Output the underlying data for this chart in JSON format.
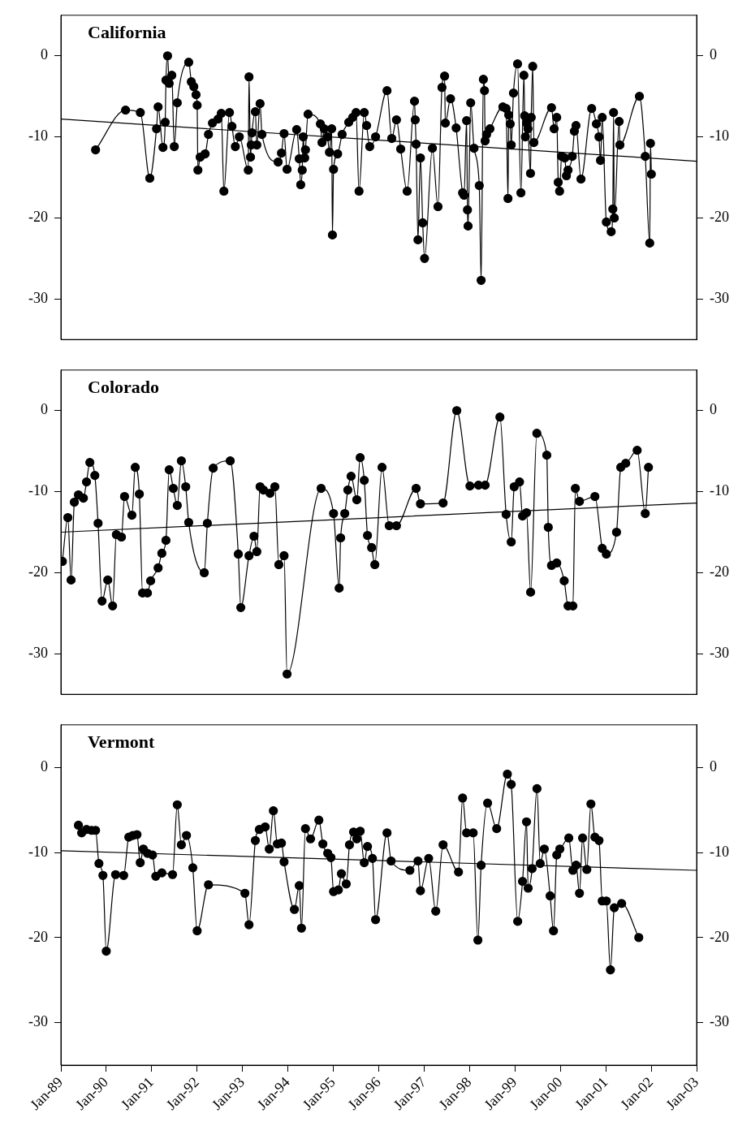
{
  "chart_data": [
    {
      "type": "line",
      "title": "California",
      "marker": "circle",
      "tick_labels": "y",
      "xlim": [
        "1989-01",
        "2003-01"
      ],
      "ylim": [
        -35,
        5
      ],
      "yticks": [
        -30,
        -20,
        -10,
        0
      ],
      "y2lim": [
        -35,
        5
      ],
      "y2ticks": [
        -30,
        -20,
        -10,
        0
      ],
      "series": [
        {
          "color": "#000000",
          "x": [
            "1989-10-07",
            "1990-06-05",
            "1990-10-02",
            "1990-12-17",
            "1991-02-09",
            "1991-02-22",
            "1991-04-02",
            "1991-04-20",
            "1991-04-26",
            "1991-05-09",
            "1991-05-22",
            "1991-06-12",
            "1991-07-02",
            "1991-07-26",
            "1991-10-26",
            "1991-11-16",
            "1991-12-06",
            "1991-12-24",
            "1992-01-02",
            "1992-01-08",
            "1992-01-26",
            "1992-03-06",
            "1992-04-02",
            "1992-05-04",
            "1992-06-18",
            "1992-07-14",
            "1992-08-04",
            "1992-09-18",
            "1992-10-08",
            "1992-11-04",
            "1992-12-06",
            "1993-02-16",
            "1993-02-22",
            "1993-03-06",
            "1993-03-12",
            "1993-03-18",
            "1993-04-14",
            "1993-04-26",
            "1993-05-22",
            "1993-06-06",
            "1993-10-14",
            "1993-11-10",
            "1993-12-01",
            "1993-12-25",
            "1994-03-12",
            "1994-04-02",
            "1994-04-14",
            "1994-04-26",
            "1994-05-04",
            "1994-05-16",
            "1994-05-22",
            "1994-06-12",
            "1994-09-19",
            "1994-10-02",
            "1994-10-20",
            "1994-11-16",
            "1994-12-01",
            "1994-12-19",
            "1994-12-25",
            "1995-01-03",
            "1995-02-05",
            "1995-03-13",
            "1995-05-05",
            "1995-06-06",
            "1995-07-03",
            "1995-07-27",
            "1995-09-07",
            "1995-09-26",
            "1995-10-21",
            "1995-12-07",
            "1996-03-08",
            "1996-04-15",
            "1996-05-23",
            "1996-06-26",
            "1996-08-17",
            "1996-10-15",
            "1996-10-21",
            "1996-10-28",
            "1996-11-12",
            "1996-12-02",
            "1996-12-20",
            "1997-01-04",
            "1997-03-08",
            "1997-04-22",
            "1997-05-24",
            "1997-06-14",
            "1997-06-20",
            "1997-08-01",
            "1997-09-15",
            "1997-11-06",
            "1997-11-18",
            "1997-12-08",
            "1997-12-15",
            "1997-12-20",
            "1998-01-10",
            "1998-02-06",
            "1998-03-20",
            "1998-04-04",
            "1998-04-22",
            "1998-05-01",
            "1998-05-06",
            "1998-05-18",
            "1998-06-14",
            "1998-09-26",
            "1998-10-22",
            "1998-11-06",
            "1998-11-12",
            "1998-11-24",
            "1998-12-02",
            "1998-12-20",
            "1999-01-22",
            "1999-02-18",
            "1999-03-14",
            "1999-03-20",
            "1999-03-26",
            "1999-04-04",
            "1999-04-16",
            "1999-05-06",
            "1999-05-12",
            "1999-05-24",
            "1999-06-02",
            "1999-10-22",
            "1999-11-12",
            "1999-12-03",
            "1999-12-15",
            "1999-12-26",
            "2000-01-11",
            "2000-02-06",
            "2000-02-19",
            "2000-03-03",
            "2000-04-06",
            "2000-04-23",
            "2000-05-06",
            "2000-06-15",
            "2000-09-09",
            "2000-10-17",
            "2000-11-07",
            "2000-11-19",
            "2000-12-03",
            "2001-01-05",
            "2001-02-13",
            "2001-02-26",
            "2001-03-04",
            "2001-03-10",
            "2001-04-18",
            "2001-04-24",
            "2001-09-28",
            "2001-11-14",
            "2001-12-20",
            "2001-12-26",
            "2002-01-02"
          ],
          "values": [
            -11.6,
            -6.7,
            -7.0,
            -15.1,
            -9.0,
            -6.3,
            -11.3,
            -8.2,
            -3.0,
            0,
            -3.4,
            -2.4,
            -11.2,
            -5.8,
            -0.8,
            -3.2,
            -3.8,
            -4.8,
            -6.1,
            -14.1,
            -12.5,
            -12.1,
            -9.7,
            -8.3,
            -7.8,
            -7.1,
            -16.7,
            -7.0,
            -8.7,
            -11.2,
            -10,
            -14.1,
            -2.6,
            -12.5,
            -11,
            -9.5,
            -6.9,
            -11,
            -5.9,
            -9.7,
            -13.1,
            -12.0,
            -9.6,
            -14.0,
            -9.1,
            -12.7,
            -15.9,
            -14.1,
            -10,
            -12.6,
            -11.6,
            -7.2,
            -8.4,
            -10.7,
            -9,
            -10,
            -11.9,
            -9,
            -22.1,
            -14.0,
            -12.1,
            -9.7,
            -8.2,
            -7.6,
            -7.0,
            -16.7,
            -7.0,
            -8.6,
            -11.2,
            -10,
            -4.3,
            -10.2,
            -7.9,
            -11.5,
            -16.7,
            -5.6,
            -7.9,
            -10.9,
            -22.7,
            -12.6,
            -20.6,
            -25.0,
            -11.4,
            -18.6,
            -3.9,
            -2.5,
            -8.3,
            -5.3,
            -8.9,
            -16.9,
            -17.2,
            -8.0,
            -19.0,
            -21.0,
            -5.8,
            -11.4,
            -16.0,
            -27.7,
            -2.9,
            -4.3,
            -10.5,
            -9.7,
            -9.0,
            -6.3,
            -6.5,
            -17.6,
            -7.3,
            -8.4,
            -11.0,
            -4.6,
            -1.0,
            -16.9,
            -2.4,
            -7.4,
            -10,
            -8.3,
            -9,
            -14.5,
            -7.6,
            -1.3,
            -10.7,
            -6.4,
            -9,
            -7.6,
            -15.6,
            -16.7,
            -12.4,
            -12.6,
            -14.8,
            -14.1,
            -12.4,
            -9.3,
            -8.6,
            -15.2,
            -6.5,
            -8.4,
            -10,
            -12.9,
            -7.6,
            -20.5,
            -21.7,
            -18.9,
            -7.0,
            -20.0,
            -8.1,
            -11.0,
            -5.0,
            -12.4,
            -23.1,
            -10.8,
            -14.6
          ]
        },
        {
          "color": "#000000",
          "marker": "none",
          "x": [
            "1989-01",
            "2003-01"
          ],
          "values": [
            -7.8,
            -13.0
          ]
        }
      ]
    },
    {
      "type": "line",
      "title": "Colorado",
      "marker": "circle",
      "tick_labels": "y",
      "xlim": [
        "1989-01",
        "2003-01"
      ],
      "ylim": [
        -35,
        5
      ],
      "yticks": [
        -30,
        -20,
        -10,
        0
      ],
      "y2lim": [
        -35,
        5
      ],
      "y2ticks": [
        -30,
        -20,
        -10,
        0
      ],
      "series": [
        {
          "color": "#000000",
          "x": [
            "1989-01-13",
            "1989-02-26",
            "1989-03-24",
            "1989-04-19",
            "1989-05-22",
            "1989-07-01",
            "1989-07-26",
            "1989-08-22",
            "1989-10-01",
            "1989-10-27",
            "1989-11-28",
            "1990-01-13",
            "1990-02-21",
            "1990-03-23",
            "1990-05-03",
            "1990-05-28",
            "1990-07-26",
            "1990-08-22",
            "1990-09-24",
            "1990-10-20",
            "1990-11-28",
            "1990-12-24",
            "1991-02-22",
            "1991-03-24",
            "1991-04-26",
            "1991-05-22",
            "1991-06-24",
            "1991-07-26",
            "1991-08-28",
            "1991-10-02",
            "1991-10-26",
            "1992-02-28",
            "1992-03-24",
            "1992-05-10",
            "1992-09-24",
            "1992-11-28",
            "1992-12-18",
            "1993-02-22",
            "1993-04-03",
            "1993-04-26",
            "1993-05-22",
            "1993-06-18",
            "1993-08-10",
            "1993-09-18",
            "1993-10-20",
            "1993-12-01",
            "1993-12-25",
            "1994-09-25",
            "1995-01-03",
            "1995-02-17",
            "1995-03-01",
            "1995-04-03",
            "1995-04-28",
            "1995-05-24",
            "1995-07-09",
            "1995-08-05",
            "1995-09-07",
            "1995-10-03",
            "1995-11-05",
            "1995-12-01",
            "1996-01-28",
            "1996-03-26",
            "1996-05-23",
            "1996-10-28",
            "1996-12-02",
            "1997-06-02",
            "1997-09-20",
            "1998-01-04",
            "1998-03-14",
            "1998-05-06",
            "1998-09-02",
            "1998-10-22",
            "1998-12-02",
            "1998-12-26",
            "1999-02-07",
            "1999-03-03",
            "1999-04-04",
            "1999-05-07",
            "1999-06-26",
            "1999-09-14",
            "1999-09-26",
            "1999-10-22",
            "1999-12-03",
            "2000-02-01",
            "2000-03-03",
            "2000-04-11",
            "2000-05-01",
            "2000-06-03",
            "2000-10-05",
            "2000-12-03",
            "2001-01-05",
            "2001-03-28",
            "2001-05-01",
            "2001-06-10",
            "2001-09-10",
            "2001-11-14",
            "2001-12-10"
          ],
          "values": [
            -18.6,
            -13.2,
            -20.9,
            -11.3,
            -10.4,
            -10.8,
            -8.8,
            -6.4,
            -8.0,
            -13.9,
            -23.5,
            -20.9,
            -24.1,
            -15.3,
            -15.6,
            -10.6,
            -12.9,
            -7.0,
            -10.3,
            -22.5,
            -22.5,
            -21.0,
            -19.4,
            -17.6,
            -16.0,
            -7.3,
            -9.6,
            -11.7,
            -6.2,
            -9.4,
            -13.8,
            -20.0,
            -13.9,
            -7.1,
            -6.2,
            -17.7,
            -24.3,
            -17.9,
            -15.5,
            -17.4,
            -9.4,
            -9.8,
            -10.2,
            -9.4,
            -19.0,
            -17.9,
            -32.5,
            -9.6,
            -12.7,
            -21.9,
            -15.7,
            -12.7,
            -9.8,
            -8.1,
            -11.0,
            -5.8,
            -8.6,
            -15.4,
            -16.9,
            -19.0,
            -7.0,
            -14.2,
            -14.2,
            -9.6,
            -11.5,
            -11.4,
            0.0,
            -9.3,
            -9.2,
            -9.2,
            -0.8,
            -12.8,
            -16.2,
            -9.4,
            -8.8,
            -13.0,
            -12.6,
            -22.4,
            -2.8,
            -5.5,
            -14.4,
            -19.1,
            -18.8,
            -21.0,
            -24.1,
            -24.1,
            -9.6,
            -11.2,
            -10.6,
            -17.0,
            -17.7,
            -15.0,
            -7.0,
            -6.5,
            -4.9,
            -12.7,
            -7.0
          ]
        },
        {
          "color": "#000000",
          "marker": "none",
          "x": [
            "1989-01",
            "2003-01"
          ],
          "values": [
            -15.0,
            -11.4
          ]
        }
      ]
    },
    {
      "type": "line",
      "title": "Vermont",
      "marker": "circle",
      "xlim": [
        "1989-01",
        "2003-01"
      ],
      "ylim": [
        -35,
        5
      ],
      "yticks": [
        -30,
        -20,
        -10,
        0
      ],
      "y2lim": [
        -35,
        5
      ],
      "y2ticks": [
        -30,
        -20,
        -10,
        0
      ],
      "xticks": [
        {
          "value": "1989-01",
          "label": "Jan-89"
        },
        {
          "value": "1990-01",
          "label": "Jan-90"
        },
        {
          "value": "1991-01",
          "label": "Jan-91"
        },
        {
          "value": "1992-01",
          "label": "Jan-92"
        },
        {
          "value": "1993-01",
          "label": "Jan-93"
        },
        {
          "value": "1994-01",
          "label": "Jan-94"
        },
        {
          "value": "1995-01",
          "label": "Jan-95"
        },
        {
          "value": "1996-01",
          "label": "Jan-96"
        },
        {
          "value": "1997-01",
          "label": "Jan-97"
        },
        {
          "value": "1998-01",
          "label": "Jan-98"
        },
        {
          "value": "1999-01",
          "label": "Jan-99"
        },
        {
          "value": "2000-01",
          "label": "Jan-00"
        },
        {
          "value": "2001-01",
          "label": "Jan-01"
        },
        {
          "value": "2002-01",
          "label": "Jan-02"
        },
        {
          "value": "2003-01",
          "label": "Jan-03"
        }
      ],
      "series": [
        {
          "color": "#000000",
          "x": [
            "1989-05-22",
            "1989-06-17",
            "1989-07-26",
            "1989-09-05",
            "1989-10-07",
            "1989-11-03",
            "1989-12-05",
            "1990-01-01",
            "1990-03-17",
            "1990-05-21",
            "1990-07-01",
            "1990-08-03",
            "1990-09-05",
            "1990-10-01",
            "1990-10-26",
            "1990-11-28",
            "1991-01-08",
            "1991-02-03",
            "1991-03-24",
            "1991-06-18",
            "1991-07-26",
            "1991-08-28",
            "1991-10-08",
            "1991-11-28",
            "1992-01-02",
            "1992-04-02",
            "1993-01-20",
            "1993-02-22",
            "1993-04-14",
            "1993-05-16",
            "1993-07-02",
            "1993-08-04",
            "1993-09-06",
            "1993-10-08",
            "1993-11-10",
            "1993-12-01",
            "1994-02-22",
            "1994-04-02",
            "1994-04-20",
            "1994-05-22",
            "1994-07-02",
            "1994-09-07",
            "1994-10-09",
            "1994-11-17",
            "1994-12-13",
            "1995-01-03",
            "1995-02-11",
            "1995-03-07",
            "1995-04-15",
            "1995-05-11",
            "1995-06-13",
            "1995-07-09",
            "1995-08-05",
            "1995-09-07",
            "1995-10-03",
            "1995-11-12",
            "1995-12-07",
            "1996-03-08",
            "1996-04-10",
            "1996-09-08",
            "1996-11-12",
            "1996-12-02",
            "1997-02-06",
            "1997-04-04",
            "1997-06-02",
            "1997-10-04",
            "1997-11-06",
            "1997-12-08",
            "1998-01-30",
            "1998-03-09",
            "1998-04-04",
            "1998-05-26",
            "1998-08-07",
            "1998-11-01",
            "1998-12-02",
            "1999-01-23",
            "1999-03-03",
            "1999-04-04",
            "1999-04-17",
            "1999-05-19",
            "1999-06-27",
            "1999-07-23",
            "1999-08-25",
            "1999-10-11",
            "1999-11-07",
            "1999-12-03",
            "1999-12-28",
            "2000-03-09",
            "2000-04-11",
            "2000-05-07",
            "2000-06-03",
            "2000-06-28",
            "2000-08-01",
            "2000-09-03",
            "2000-10-05",
            "2000-11-07",
            "2000-12-03",
            "2001-01-05",
            "2001-02-07",
            "2001-03-10",
            "2001-05-08",
            "2001-09-23"
          ],
          "values": [
            -6.8,
            -7.7,
            -7.3,
            -7.4,
            -7.4,
            -11.3,
            -12.7,
            -21.6,
            -12.6,
            -12.7,
            -8.2,
            -8.0,
            -7.9,
            -11.2,
            -9.6,
            -10.1,
            -10.3,
            -12.8,
            -12.4,
            -12.6,
            -4.4,
            -9.1,
            -8.0,
            -11.8,
            -19.2,
            -13.8,
            -14.8,
            -18.5,
            -8.6,
            -7.3,
            -7.0,
            -9.6,
            -5.1,
            -9.0,
            -8.9,
            -11.1,
            -16.7,
            -13.9,
            -18.9,
            -7.2,
            -8.4,
            -6.2,
            -9.0,
            -10.1,
            -10.6,
            -14.6,
            -14.4,
            -12.5,
            -13.7,
            -9.1,
            -7.6,
            -8.4,
            -7.5,
            -11.2,
            -9.3,
            -10.7,
            -17.9,
            -7.7,
            -11.0,
            -12.1,
            -11.0,
            -14.5,
            -10.7,
            -16.9,
            -9.1,
            -12.3,
            -3.6,
            -7.7,
            -7.7,
            -20.3,
            -11.5,
            -4.2,
            -7.2,
            -0.8,
            -2.0,
            -18.1,
            -13.4,
            -6.4,
            -14.2,
            -11.9,
            -2.5,
            -11.3,
            -9.6,
            -15.1,
            -19.2,
            -10.3,
            -9.6,
            -8.3,
            -12.1,
            -11.5,
            -14.8,
            -8.3,
            -12.0,
            -4.3,
            -8.2,
            -8.6,
            -15.7,
            -15.7,
            -23.8,
            -16.5,
            -16.0,
            -20.0
          ]
        },
        {
          "color": "#000000",
          "marker": "none",
          "x": [
            "1989-01",
            "2003-01"
          ],
          "values": [
            -9.8,
            -12.1
          ]
        }
      ]
    }
  ]
}
